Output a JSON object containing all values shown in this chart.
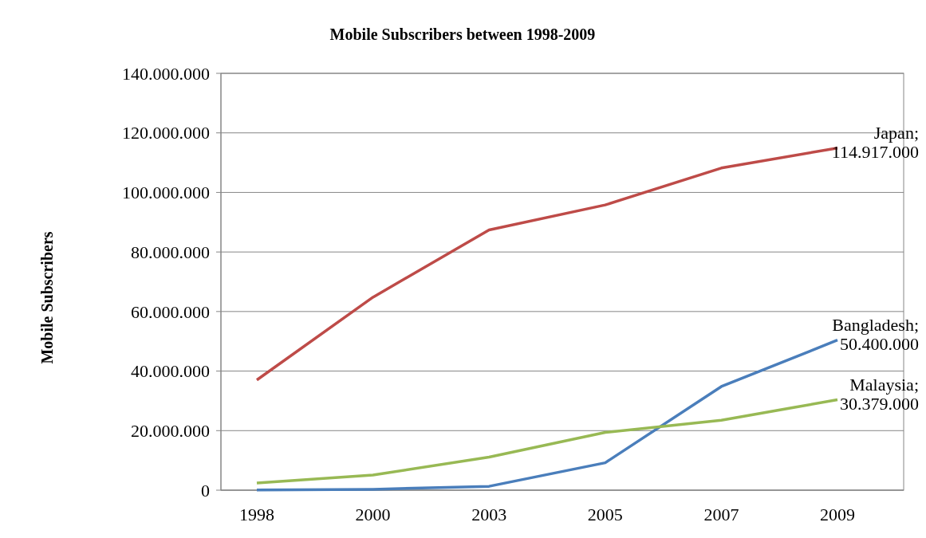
{
  "chart_data": {
    "type": "line",
    "title": "Mobile Subscribers between 1998-2009",
    "ylabel": "Mobile Subscribers",
    "categories": [
      "1998",
      "2000",
      "2003",
      "2005",
      "2007",
      "2009"
    ],
    "series": [
      {
        "color": "#be4b48",
        "values": [
          37000000,
          64800000,
          87400000,
          95800000,
          108200000,
          114917000
        ]
      },
      {
        "color": "#4a7ebb",
        "values": [
          100000,
          300000,
          1300000,
          9200000,
          34800000,
          50400000
        ]
      },
      {
        "color": "#98b954",
        "values": [
          2400000,
          5100000,
          11100000,
          19400000,
          23500000,
          30379000
        ]
      }
    ],
    "ylim": [
      0,
      140000000
    ],
    "yticks": [
      {
        "value": 0,
        "label": "0"
      },
      {
        "value": 20000000,
        "label": "20.000.000"
      },
      {
        "value": 40000000,
        "label": "40.000.000"
      },
      {
        "value": 60000000,
        "label": "60.000.000"
      },
      {
        "value": 80000000,
        "label": "80.000.000"
      },
      {
        "value": 100000000,
        "label": "100.000.000"
      },
      {
        "value": 120000000,
        "label": "120.000.000"
      },
      {
        "value": 140000000,
        "label": "140.000.000"
      }
    ],
    "grid": "y",
    "marker": "none",
    "line_style": "solid",
    "annotations": [
      {
        "text": "Japan; 114.917.000",
        "x": "2009",
        "y": 114917000
      },
      {
        "text": "Bangladesh; 50.400.000",
        "x": "2009",
        "y": 50400000
      },
      {
        "text": "Malaysia; 30.379.000",
        "x": "2009",
        "y": 30379000
      }
    ]
  }
}
